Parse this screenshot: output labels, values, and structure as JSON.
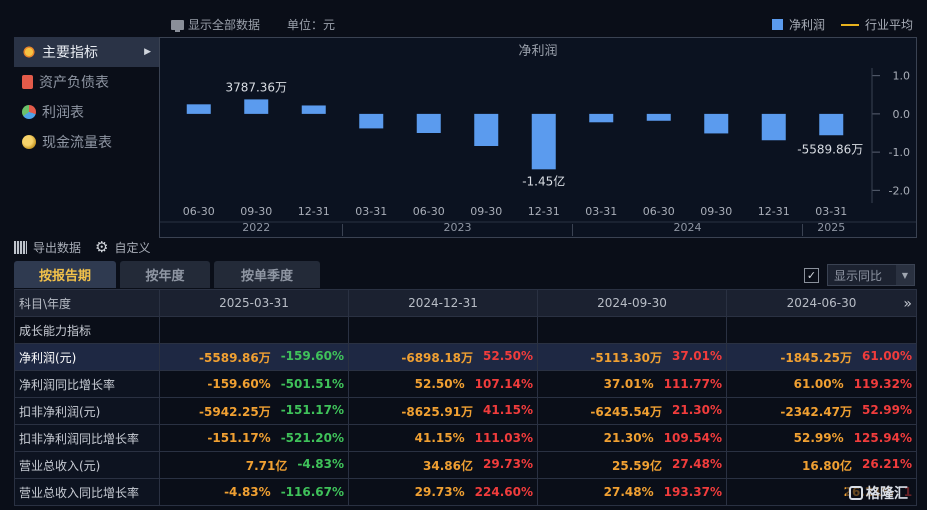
{
  "toolbar": {
    "show_all_label": "显示全部数据",
    "unit_label": "单位：元",
    "legend_net_profit": "净利润",
    "legend_industry_avg": "行业平均"
  },
  "sidebar": {
    "items": [
      {
        "label": "主要指标",
        "icon": "asterisk-icon"
      },
      {
        "label": "资产负债表",
        "icon": "document-icon"
      },
      {
        "label": "利润表",
        "icon": "pie-chart-icon"
      },
      {
        "label": "现金流量表",
        "icon": "coins-icon"
      }
    ]
  },
  "chart_data": {
    "type": "bar",
    "title": "净利润",
    "categories": [
      "06-30",
      "09-30",
      "12-31",
      "03-31",
      "06-30",
      "09-30",
      "12-31",
      "03-31",
      "06-30",
      "09-30",
      "12-31",
      "03-31"
    ],
    "year_labels": [
      "2022",
      "2023",
      "2024",
      "2025"
    ],
    "values": [
      0.25,
      0.3787,
      0.22,
      -0.38,
      -0.5,
      -0.84,
      -1.45,
      -0.22,
      -0.18,
      -0.5113,
      -0.6898,
      -0.559
    ],
    "unit": "亿",
    "yticks": [
      "1.0",
      "0.0",
      "-1.0",
      "-2.0"
    ],
    "ylim": [
      -2.2,
      1.2
    ],
    "annotations": [
      {
        "index": 1,
        "text": "3787.36万"
      },
      {
        "index": 6,
        "text": "-1.45亿"
      },
      {
        "index": 11,
        "text": "-5589.86万"
      }
    ]
  },
  "export": {
    "export_label": "导出数据",
    "custom_label": "自定义"
  },
  "tabs": [
    {
      "label": "按报告期"
    },
    {
      "label": "按年度"
    },
    {
      "label": "按单季度"
    }
  ],
  "yoy": {
    "check": "✓",
    "label": "显示同比"
  },
  "table": {
    "header": [
      "科目\\年度",
      "2025-03-31",
      "2024-12-31",
      "2024-09-30",
      "2024-06-30"
    ],
    "section": "成长能力指标",
    "rows": [
      {
        "label": "净利润(元)",
        "hl": true,
        "cells": [
          [
            "-5589.86万",
            "-159.60%"
          ],
          [
            "-6898.18万",
            "52.50%"
          ],
          [
            "-5113.30万",
            "37.01%"
          ],
          [
            "-1845.25万",
            "61.00%"
          ]
        ]
      },
      {
        "label": "净利润同比增长率",
        "cells": [
          [
            "-159.60%",
            "-501.51%"
          ],
          [
            "52.50%",
            "107.14%"
          ],
          [
            "37.01%",
            "111.77%"
          ],
          [
            "61.00%",
            "119.32%"
          ]
        ]
      },
      {
        "label": "扣非净利润(元)",
        "cells": [
          [
            "-5942.25万",
            "-151.17%"
          ],
          [
            "-8625.91万",
            "41.15%"
          ],
          [
            "-6245.54万",
            "21.30%"
          ],
          [
            "-2342.47万",
            "52.99%"
          ]
        ]
      },
      {
        "label": "扣非净利润同比增长率",
        "cells": [
          [
            "-151.17%",
            "-521.20%"
          ],
          [
            "41.15%",
            "111.03%"
          ],
          [
            "21.30%",
            "109.54%"
          ],
          [
            "52.99%",
            "125.94%"
          ]
        ]
      },
      {
        "label": "营业总收入(元)",
        "cells": [
          [
            "7.71亿",
            "-4.83%"
          ],
          [
            "34.86亿",
            "29.73%"
          ],
          [
            "25.59亿",
            "27.48%"
          ],
          [
            "16.80亿",
            "26.21%"
          ]
        ]
      },
      {
        "label": "营业总收入同比增长率",
        "cells": [
          [
            "-4.83%",
            "-116.67%"
          ],
          [
            "29.73%",
            "224.60%"
          ],
          [
            "27.48%",
            "193.37%"
          ],
          [
            "26.21%",
            "1"
          ]
        ]
      }
    ]
  },
  "watermark": "格隆汇"
}
